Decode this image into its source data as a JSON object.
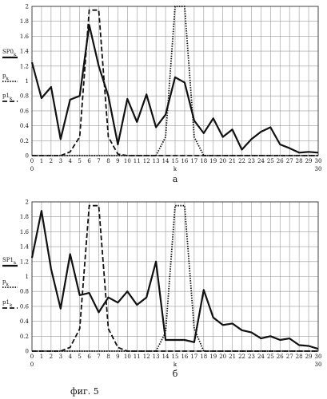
{
  "chart_data": [
    {
      "type": "line",
      "panel_label": "а",
      "xlabel": "k",
      "x_range_labels": [
        "0",
        "30"
      ],
      "xlim": [
        0,
        30
      ],
      "ylim": [
        0,
        2
      ],
      "grid": true,
      "x_ticks": [
        0,
        1,
        2,
        3,
        4,
        5,
        6,
        7,
        8,
        9,
        10,
        11,
        12,
        13,
        14,
        15,
        16,
        17,
        18,
        19,
        20,
        21,
        22,
        23,
        24,
        25,
        26,
        27,
        28,
        29,
        30
      ],
      "y_ticks": [
        0,
        0.2,
        0.4,
        0.6,
        0.8,
        1,
        1.2,
        1.4,
        1.6,
        1.8,
        2
      ],
      "y_tick_labels": [
        "0",
        "0.2",
        "0.4",
        "0.6",
        "0.8",
        "1",
        "1.2",
        "1.4",
        "1.6",
        "1.8",
        "2"
      ],
      "legend_placement": "left",
      "x": [
        0,
        1,
        2,
        3,
        4,
        5,
        6,
        7,
        8,
        9,
        10,
        11,
        12,
        13,
        14,
        15,
        16,
        17,
        18,
        19,
        20,
        21,
        22,
        23,
        24,
        25,
        26,
        27,
        28,
        29,
        30
      ],
      "series": [
        {
          "name": "SP0k",
          "style": "solid",
          "values": [
            1.25,
            0.77,
            0.92,
            0.22,
            0.75,
            0.8,
            1.75,
            1.2,
            0.8,
            0.15,
            0.76,
            0.45,
            0.82,
            0.38,
            0.55,
            1.05,
            0.98,
            0.47,
            0.3,
            0.5,
            0.25,
            0.35,
            0.08,
            0.22,
            0.32,
            0.38,
            0.15,
            0.1,
            0.04,
            0.05,
            0.04
          ]
        },
        {
          "name": "pk",
          "style": "dotted",
          "values": [
            0,
            0,
            0,
            0,
            0,
            0,
            0,
            0,
            0,
            0,
            0,
            0,
            0,
            0,
            0.25,
            2.0,
            2.0,
            0.25,
            0,
            0,
            0,
            0,
            0,
            0,
            0,
            0,
            0,
            0,
            0,
            0,
            0
          ]
        },
        {
          "name": "p1k",
          "style": "dashed",
          "values": [
            0,
            0,
            0,
            0,
            0.05,
            0.25,
            1.95,
            1.95,
            0.25,
            0.02,
            0,
            0,
            0,
            0,
            0,
            0,
            0,
            0,
            0,
            0,
            0,
            0,
            0,
            0,
            0,
            0,
            0,
            0,
            0,
            0,
            0
          ]
        }
      ]
    },
    {
      "type": "line",
      "panel_label": "б",
      "xlabel": "k",
      "x_range_labels": [
        "0",
        "30"
      ],
      "xlim": [
        0,
        30
      ],
      "ylim": [
        0,
        2
      ],
      "grid": true,
      "x_ticks": [
        0,
        1,
        2,
        3,
        4,
        5,
        6,
        7,
        8,
        9,
        10,
        11,
        12,
        13,
        14,
        15,
        16,
        17,
        18,
        19,
        20,
        21,
        22,
        23,
        24,
        25,
        26,
        27,
        28,
        29,
        30
      ],
      "y_ticks": [
        0,
        0.2,
        0.4,
        0.6,
        0.8,
        1,
        1.2,
        1.4,
        1.6,
        1.8,
        2
      ],
      "y_tick_labels": [
        "0",
        "0.2",
        "0.4",
        "0.6",
        "0.8",
        "1",
        "1.2",
        "1.4",
        "1.6",
        "1.8",
        "2"
      ],
      "legend_placement": "left",
      "x": [
        0,
        1,
        2,
        3,
        4,
        5,
        6,
        7,
        8,
        9,
        10,
        11,
        12,
        13,
        14,
        15,
        16,
        17,
        18,
        19,
        20,
        21,
        22,
        23,
        24,
        25,
        26,
        27,
        28,
        29,
        30
      ],
      "series": [
        {
          "name": "SP1k",
          "style": "solid",
          "values": [
            1.25,
            1.88,
            1.1,
            0.57,
            1.3,
            0.75,
            0.78,
            0.52,
            0.72,
            0.65,
            0.8,
            0.62,
            0.72,
            1.2,
            0.15,
            0.15,
            0.15,
            0.12,
            0.82,
            0.45,
            0.35,
            0.37,
            0.28,
            0.25,
            0.17,
            0.2,
            0.15,
            0.17,
            0.08,
            0.07,
            0.03
          ]
        },
        {
          "name": "pk",
          "style": "dotted",
          "values": [
            0,
            0,
            0,
            0,
            0,
            0,
            0,
            0,
            0,
            0,
            0,
            0,
            0,
            0,
            0.25,
            1.95,
            1.95,
            0.3,
            0,
            0,
            0,
            0,
            0,
            0,
            0,
            0,
            0,
            0,
            0,
            0,
            0
          ]
        },
        {
          "name": "p1k",
          "style": "dashed",
          "values": [
            0,
            0,
            0,
            0,
            0.05,
            0.3,
            1.95,
            1.95,
            0.3,
            0.05,
            0,
            0,
            0,
            0,
            0,
            0,
            0,
            0,
            0,
            0,
            0,
            0,
            0,
            0,
            0,
            0,
            0,
            0,
            0,
            0,
            0
          ]
        }
      ]
    }
  ],
  "legend_text": {
    "panel_a": [
      {
        "base": "SP0",
        "sub": "k"
      },
      {
        "base": "p",
        "sub": "k"
      },
      {
        "base": "p1",
        "sub": "k"
      }
    ],
    "panel_b": [
      {
        "base": "SP1",
        "sub": "k"
      },
      {
        "base": "p",
        "sub": "k"
      },
      {
        "base": "p1",
        "sub": "k"
      }
    ]
  },
  "figure_caption": "фиг. 5"
}
